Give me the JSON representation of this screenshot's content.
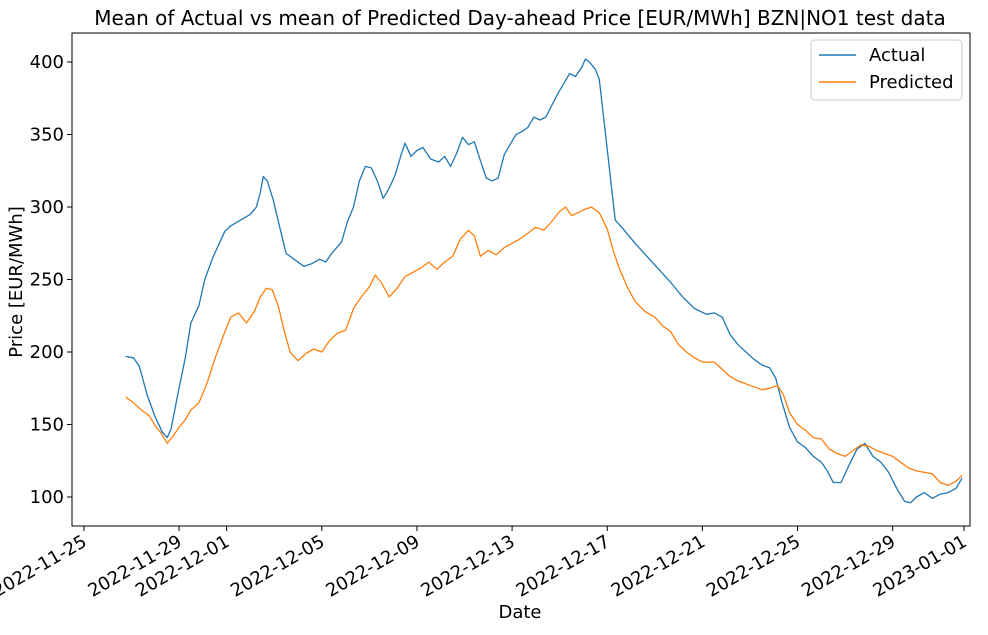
{
  "chart_data": {
    "type": "line",
    "title": "Mean of Actual vs mean of Predicted Day-ahead Price [EUR/MWh] BZN|NO1 test data",
    "xlabel": "Date",
    "ylabel": "Price [EUR/MWh]",
    "xlim": [
      "2022-11-24T12:00",
      "2023-01-01T06:00"
    ],
    "ylim": [
      80,
      420
    ],
    "x_ticks": [
      "2022-11-25",
      "2022-11-29",
      "2022-12-01",
      "2022-12-05",
      "2022-12-09",
      "2022-12-13",
      "2022-12-17",
      "2022-12-21",
      "2022-12-25",
      "2022-12-29",
      "2023-01-01"
    ],
    "y_ticks": [
      100,
      150,
      200,
      250,
      300,
      350,
      400
    ],
    "grid": false,
    "legend_position": "top-right",
    "series": [
      {
        "name": "Actual",
        "color": "#1f77b4",
        "points": [
          [
            "2022-11-26T18:00",
            197
          ],
          [
            "2022-11-27T02:00",
            196
          ],
          [
            "2022-11-27T08:00",
            190
          ],
          [
            "2022-11-27T16:00",
            170
          ],
          [
            "2022-11-28T00:00",
            155
          ],
          [
            "2022-11-28T07:00",
            145
          ],
          [
            "2022-11-28T12:00",
            141
          ],
          [
            "2022-11-28T16:00",
            147
          ],
          [
            "2022-11-29T00:00",
            175
          ],
          [
            "2022-11-29T06:00",
            195
          ],
          [
            "2022-11-29T12:00",
            220
          ],
          [
            "2022-11-29T20:00",
            232
          ],
          [
            "2022-11-30T02:00",
            250
          ],
          [
            "2022-11-30T10:00",
            265
          ],
          [
            "2022-11-30T22:00",
            283
          ],
          [
            "2022-12-01T04:00",
            287
          ],
          [
            "2022-12-01T14:00",
            291
          ],
          [
            "2022-12-02T00:00",
            295
          ],
          [
            "2022-12-02T06:00",
            300
          ],
          [
            "2022-12-02T10:00",
            310
          ],
          [
            "2022-12-02T13:00",
            321
          ],
          [
            "2022-12-02T17:00",
            318
          ],
          [
            "2022-12-02T23:00",
            305
          ],
          [
            "2022-12-03T06:00",
            285
          ],
          [
            "2022-12-03T12:00",
            268
          ],
          [
            "2022-12-03T20:00",
            264
          ],
          [
            "2022-12-04T06:00",
            259
          ],
          [
            "2022-12-04T14:00",
            261
          ],
          [
            "2022-12-04T22:00",
            264
          ],
          [
            "2022-12-05T04:00",
            262
          ],
          [
            "2022-12-05T10:00",
            268
          ],
          [
            "2022-12-05T20:00",
            276
          ],
          [
            "2022-12-06T02:00",
            290
          ],
          [
            "2022-12-06T08:00",
            300
          ],
          [
            "2022-12-06T14:00",
            318
          ],
          [
            "2022-12-06T20:00",
            328
          ],
          [
            "2022-12-07T02:00",
            327
          ],
          [
            "2022-12-07T08:00",
            318
          ],
          [
            "2022-12-07T14:00",
            306
          ],
          [
            "2022-12-07T20:00",
            313
          ],
          [
            "2022-12-08T02:00",
            322
          ],
          [
            "2022-12-08T08:00",
            336
          ],
          [
            "2022-12-08T12:00",
            344
          ],
          [
            "2022-12-08T18:00",
            335
          ],
          [
            "2022-12-09T00:00",
            339
          ],
          [
            "2022-12-09T06:00",
            341
          ],
          [
            "2022-12-09T14:00",
            333
          ],
          [
            "2022-12-09T22:00",
            331
          ],
          [
            "2022-12-10T04:00",
            335
          ],
          [
            "2022-12-10T10:00",
            328
          ],
          [
            "2022-12-10T16:00",
            337
          ],
          [
            "2022-12-10T22:00",
            348
          ],
          [
            "2022-12-11T04:00",
            343
          ],
          [
            "2022-12-11T10:00",
            345
          ],
          [
            "2022-12-11T16:00",
            332
          ],
          [
            "2022-12-11T22:00",
            320
          ],
          [
            "2022-12-12T04:00",
            318
          ],
          [
            "2022-12-12T10:00",
            320
          ],
          [
            "2022-12-12T16:00",
            336
          ],
          [
            "2022-12-12T22:00",
            343
          ],
          [
            "2022-12-13T04:00",
            350
          ],
          [
            "2022-12-13T10:00",
            352
          ],
          [
            "2022-12-13T16:00",
            355
          ],
          [
            "2022-12-13T22:00",
            362
          ],
          [
            "2022-12-14T04:00",
            360
          ],
          [
            "2022-12-14T10:00",
            362
          ],
          [
            "2022-12-14T16:00",
            370
          ],
          [
            "2022-12-14T22:00",
            378
          ],
          [
            "2022-12-15T04:00",
            385
          ],
          [
            "2022-12-15T10:00",
            392
          ],
          [
            "2022-12-15T16:00",
            390
          ],
          [
            "2022-12-15T22:00",
            396
          ],
          [
            "2022-12-16T02:00",
            402
          ],
          [
            "2022-12-16T06:00",
            400
          ],
          [
            "2022-12-16T12:00",
            395
          ],
          [
            "2022-12-16T16:00",
            388
          ],
          [
            "2022-12-17T00:00",
            340
          ],
          [
            "2022-12-17T08:00",
            291
          ],
          [
            "2022-12-17T16:00",
            285
          ],
          [
            "2022-12-18T04:00",
            275
          ],
          [
            "2022-12-18T16:00",
            266
          ],
          [
            "2022-12-19T04:00",
            257
          ],
          [
            "2022-12-19T16:00",
            248
          ],
          [
            "2022-12-20T04:00",
            238
          ],
          [
            "2022-12-20T16:00",
            230
          ],
          [
            "2022-12-21T04:00",
            226
          ],
          [
            "2022-12-21T12:00",
            227
          ],
          [
            "2022-12-21T20:00",
            224
          ],
          [
            "2022-12-22T04:00",
            212
          ],
          [
            "2022-12-22T12:00",
            205
          ],
          [
            "2022-12-22T20:00",
            200
          ],
          [
            "2022-12-23T04:00",
            195
          ],
          [
            "2022-12-23T12:00",
            191
          ],
          [
            "2022-12-23T20:00",
            189
          ],
          [
            "2022-12-24T02:00",
            182
          ],
          [
            "2022-12-24T08:00",
            166
          ],
          [
            "2022-12-24T16:00",
            148
          ],
          [
            "2022-12-25T00:00",
            138
          ],
          [
            "2022-12-25T08:00",
            134
          ],
          [
            "2022-12-25T16:00",
            128
          ],
          [
            "2022-12-26T00:00",
            124
          ],
          [
            "2022-12-26T06:00",
            118
          ],
          [
            "2022-12-26T12:00",
            110
          ],
          [
            "2022-12-26T20:00",
            110
          ],
          [
            "2022-12-27T04:00",
            122
          ],
          [
            "2022-12-27T12:00",
            133
          ],
          [
            "2022-12-27T20:00",
            137
          ],
          [
            "2022-12-28T04:00",
            128
          ],
          [
            "2022-12-28T12:00",
            124
          ],
          [
            "2022-12-28T20:00",
            117
          ],
          [
            "2022-12-29T04:00",
            106
          ],
          [
            "2022-12-29T12:00",
            97
          ],
          [
            "2022-12-29T18:00",
            96
          ],
          [
            "2022-12-30T00:00",
            100
          ],
          [
            "2022-12-30T08:00",
            103
          ],
          [
            "2022-12-30T16:00",
            99
          ],
          [
            "2022-12-31T00:00",
            102
          ],
          [
            "2022-12-31T08:00",
            103
          ],
          [
            "2022-12-31T16:00",
            106
          ],
          [
            "2022-12-31T22:00",
            113
          ]
        ]
      },
      {
        "name": "Predicted",
        "color": "#ff7f0e",
        "points": [
          [
            "2022-11-26T18:00",
            169
          ],
          [
            "2022-11-27T02:00",
            165
          ],
          [
            "2022-11-27T10:00",
            160
          ],
          [
            "2022-11-27T18:00",
            156
          ],
          [
            "2022-11-28T00:00",
            149
          ],
          [
            "2022-11-28T06:00",
            144
          ],
          [
            "2022-11-28T12:00",
            137
          ],
          [
            "2022-11-28T18:00",
            142
          ],
          [
            "2022-11-29T00:00",
            148
          ],
          [
            "2022-11-29T06:00",
            153
          ],
          [
            "2022-11-29T12:00",
            160
          ],
          [
            "2022-11-29T20:00",
            165
          ],
          [
            "2022-11-30T04:00",
            178
          ],
          [
            "2022-11-30T12:00",
            195
          ],
          [
            "2022-11-30T20:00",
            210
          ],
          [
            "2022-12-01T04:00",
            224
          ],
          [
            "2022-12-01T12:00",
            227
          ],
          [
            "2022-12-01T20:00",
            220
          ],
          [
            "2022-12-02T04:00",
            228
          ],
          [
            "2022-12-02T10:00",
            238
          ],
          [
            "2022-12-02T16:00",
            244
          ],
          [
            "2022-12-02T22:00",
            243
          ],
          [
            "2022-12-03T04:00",
            232
          ],
          [
            "2022-12-03T10:00",
            215
          ],
          [
            "2022-12-03T16:00",
            200
          ],
          [
            "2022-12-04T00:00",
            194
          ],
          [
            "2022-12-04T08:00",
            199
          ],
          [
            "2022-12-04T16:00",
            202
          ],
          [
            "2022-12-05T00:00",
            200
          ],
          [
            "2022-12-05T08:00",
            208
          ],
          [
            "2022-12-05T16:00",
            213
          ],
          [
            "2022-12-06T00:00",
            215
          ],
          [
            "2022-12-06T08:00",
            230
          ],
          [
            "2022-12-06T16:00",
            238
          ],
          [
            "2022-12-07T00:00",
            245
          ],
          [
            "2022-12-07T06:00",
            253
          ],
          [
            "2022-12-07T12:00",
            248
          ],
          [
            "2022-12-07T20:00",
            238
          ],
          [
            "2022-12-08T04:00",
            244
          ],
          [
            "2022-12-08T12:00",
            252
          ],
          [
            "2022-12-08T20:00",
            255
          ],
          [
            "2022-12-09T04:00",
            258
          ],
          [
            "2022-12-09T12:00",
            262
          ],
          [
            "2022-12-09T20:00",
            257
          ],
          [
            "2022-12-10T04:00",
            262
          ],
          [
            "2022-12-10T12:00",
            266
          ],
          [
            "2022-12-10T20:00",
            278
          ],
          [
            "2022-12-11T04:00",
            284
          ],
          [
            "2022-12-11T10:00",
            280
          ],
          [
            "2022-12-11T16:00",
            266
          ],
          [
            "2022-12-12T00:00",
            270
          ],
          [
            "2022-12-12T08:00",
            267
          ],
          [
            "2022-12-12T16:00",
            272
          ],
          [
            "2022-12-13T00:00",
            275
          ],
          [
            "2022-12-13T08:00",
            278
          ],
          [
            "2022-12-13T16:00",
            282
          ],
          [
            "2022-12-14T00:00",
            286
          ],
          [
            "2022-12-14T08:00",
            284
          ],
          [
            "2022-12-14T16:00",
            290
          ],
          [
            "2022-12-15T00:00",
            297
          ],
          [
            "2022-12-15T06:00",
            300
          ],
          [
            "2022-12-15T12:00",
            294
          ],
          [
            "2022-12-15T18:00",
            296
          ],
          [
            "2022-12-16T00:00",
            298
          ],
          [
            "2022-12-16T08:00",
            300
          ],
          [
            "2022-12-16T16:00",
            296
          ],
          [
            "2022-12-17T00:00",
            285
          ],
          [
            "2022-12-17T06:00",
            270
          ],
          [
            "2022-12-17T12:00",
            258
          ],
          [
            "2022-12-17T20:00",
            245
          ],
          [
            "2022-12-18T04:00",
            235
          ],
          [
            "2022-12-18T14:00",
            228
          ],
          [
            "2022-12-19T00:00",
            224
          ],
          [
            "2022-12-19T08:00",
            218
          ],
          [
            "2022-12-19T16:00",
            214
          ],
          [
            "2022-12-20T00:00",
            205
          ],
          [
            "2022-12-20T08:00",
            200
          ],
          [
            "2022-12-20T16:00",
            196
          ],
          [
            "2022-12-21T00:00",
            193
          ],
          [
            "2022-12-21T12:00",
            193
          ],
          [
            "2022-12-21T20:00",
            188
          ],
          [
            "2022-12-22T04:00",
            183
          ],
          [
            "2022-12-22T12:00",
            180
          ],
          [
            "2022-12-22T20:00",
            178
          ],
          [
            "2022-12-23T04:00",
            176
          ],
          [
            "2022-12-23T12:00",
            174
          ],
          [
            "2022-12-23T20:00",
            175
          ],
          [
            "2022-12-24T04:00",
            177
          ],
          [
            "2022-12-24T10:00",
            170
          ],
          [
            "2022-12-24T16:00",
            158
          ],
          [
            "2022-12-25T00:00",
            150
          ],
          [
            "2022-12-25T08:00",
            146
          ],
          [
            "2022-12-25T16:00",
            141
          ],
          [
            "2022-12-26T00:00",
            140
          ],
          [
            "2022-12-26T08:00",
            133
          ],
          [
            "2022-12-26T16:00",
            130
          ],
          [
            "2022-12-27T00:00",
            128
          ],
          [
            "2022-12-27T08:00",
            132
          ],
          [
            "2022-12-27T16:00",
            136
          ],
          [
            "2022-12-28T00:00",
            135
          ],
          [
            "2022-12-28T08:00",
            132
          ],
          [
            "2022-12-28T16:00",
            130
          ],
          [
            "2022-12-29T00:00",
            128
          ],
          [
            "2022-12-29T08:00",
            124
          ],
          [
            "2022-12-29T16:00",
            120
          ],
          [
            "2022-12-30T00:00",
            118
          ],
          [
            "2022-12-30T08:00",
            117
          ],
          [
            "2022-12-30T16:00",
            116
          ],
          [
            "2022-12-31T00:00",
            110
          ],
          [
            "2022-12-31T08:00",
            108
          ],
          [
            "2022-12-31T16:00",
            111
          ],
          [
            "2022-12-31T22:00",
            115
          ]
        ]
      }
    ]
  }
}
